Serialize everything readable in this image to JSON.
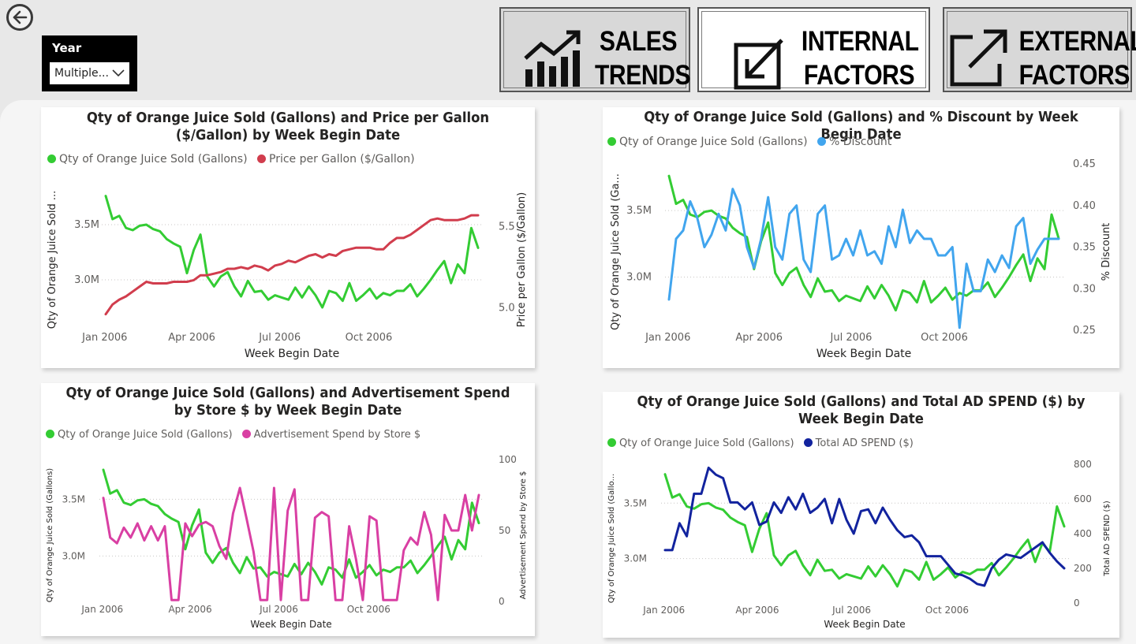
{
  "nav": {
    "back_icon": "arrow-left-circle-icon",
    "buttons": [
      {
        "line1": "SALES",
        "line2": "TRENDS",
        "icon": "chart-trending-up-icon",
        "active": false
      },
      {
        "line1": "INTERNAL",
        "line2": "FACTORS",
        "icon": "arrow-down-left-icon",
        "active": true
      },
      {
        "line1": "EXTERNAL",
        "line2": "FACTORS",
        "icon": "arrow-up-right-icon",
        "active": false
      }
    ]
  },
  "slicer": {
    "title": "Year",
    "value": "Multiple..."
  },
  "colors": {
    "green": "#33cc33",
    "red": "#d13d4d",
    "blue": "#41a5ee",
    "pink": "#d93fa3",
    "navy": "#12239e"
  },
  "chart_data": [
    {
      "type": "line",
      "title": "Qty of Orange Juice Sold (Gallons) and Price per Gallon ($/Gallon) by Week Begin Date",
      "xlabel": "Week Begin Date",
      "x_ticks": [
        "Jan 2006",
        "Apr 2006",
        "Jul 2006",
        "Oct 2006"
      ],
      "ylabel": "Qty of Orange Juice Sold ...",
      "y_ticks": [
        "3.0M",
        "3.5M"
      ],
      "y2label": "Price per Gallon ($/Gallon)",
      "y2_ticks": [
        "5.0",
        "5.5"
      ],
      "ylim": [
        2.6,
        3.85
      ],
      "y2lim": [
        4.9,
        5.75
      ],
      "x_start": "2006-01-02",
      "x_step_days": 7,
      "series": [
        {
          "name": "Qty of Orange Juice Sold (Gallons)",
          "axis": "y",
          "color": "#33cc33",
          "values": [
            3.76,
            3.55,
            3.58,
            3.47,
            3.45,
            3.49,
            3.5,
            3.46,
            3.44,
            3.37,
            3.33,
            3.3,
            3.06,
            3.27,
            3.41,
            3.03,
            2.94,
            3.03,
            3.07,
            2.94,
            2.85,
            2.99,
            2.89,
            2.9,
            2.82,
            2.86,
            2.84,
            2.82,
            2.93,
            2.84,
            2.94,
            2.86,
            2.75,
            2.9,
            2.88,
            2.81,
            2.97,
            2.81,
            2.86,
            2.92,
            2.83,
            2.88,
            2.86,
            2.9,
            2.9,
            2.96,
            2.85,
            2.92,
            3.0,
            3.09,
            3.17,
            2.97,
            3.14,
            3.06,
            3.47,
            3.29
          ]
        },
        {
          "name": "Price per Gallon ($/Gallon)",
          "axis": "y2",
          "color": "#d13d4d",
          "values": [
            4.96,
            5.02,
            5.05,
            5.07,
            5.1,
            5.13,
            5.16,
            5.15,
            5.15,
            5.15,
            5.16,
            5.16,
            5.16,
            5.17,
            5.2,
            5.2,
            5.21,
            5.22,
            5.24,
            5.24,
            5.25,
            5.24,
            5.26,
            5.25,
            5.23,
            5.26,
            5.27,
            5.29,
            5.28,
            5.3,
            5.32,
            5.33,
            5.31,
            5.33,
            5.32,
            5.35,
            5.36,
            5.37,
            5.37,
            5.37,
            5.36,
            5.36,
            5.4,
            5.43,
            5.43,
            5.45,
            5.48,
            5.51,
            5.54,
            5.55,
            5.54,
            5.54,
            5.54,
            5.55,
            5.57,
            5.57
          ]
        }
      ]
    },
    {
      "type": "line",
      "title": "Qty of Orange Juice Sold (Gallons) and % Discount by Week Begin Date",
      "xlabel": "Week Begin Date",
      "x_ticks": [
        "Jan 2006",
        "Apr 2006",
        "Jul 2006",
        "Oct 2006"
      ],
      "ylabel": "Qty of Orange Juice Sold (Ga...",
      "y_ticks": [
        "3.0M",
        "3.5M"
      ],
      "y2label": "% Discount",
      "y2_ticks": [
        "0.25",
        "0.30",
        "0.35",
        "0.40",
        "0.45"
      ],
      "ylim": [
        2.6,
        3.85
      ],
      "y2lim": [
        0.25,
        0.45
      ],
      "x_start": "2006-01-02",
      "x_step_days": 7,
      "series": [
        {
          "name": "Qty of Orange Juice Sold (Gallons)",
          "axis": "y",
          "color": "#33cc33",
          "values": [
            3.76,
            3.55,
            3.58,
            3.47,
            3.45,
            3.49,
            3.5,
            3.46,
            3.44,
            3.37,
            3.33,
            3.3,
            3.06,
            3.27,
            3.41,
            3.03,
            2.94,
            3.03,
            3.07,
            2.94,
            2.85,
            2.99,
            2.89,
            2.9,
            2.82,
            2.86,
            2.84,
            2.82,
            2.93,
            2.84,
            2.94,
            2.86,
            2.75,
            2.9,
            2.88,
            2.81,
            2.97,
            2.81,
            2.86,
            2.92,
            2.83,
            2.88,
            2.86,
            2.9,
            2.9,
            2.96,
            2.85,
            2.92,
            3.0,
            3.09,
            3.17,
            2.97,
            3.14,
            3.06,
            3.47,
            3.29
          ]
        },
        {
          "name": "% Discount",
          "axis": "y2",
          "color": "#41a5ee",
          "values": [
            0.287,
            0.36,
            0.37,
            0.405,
            0.385,
            0.35,
            0.365,
            0.39,
            0.37,
            0.42,
            0.4,
            0.35,
            0.325,
            0.36,
            0.41,
            0.35,
            0.335,
            0.39,
            0.4,
            0.335,
            0.32,
            0.39,
            0.4,
            0.335,
            0.34,
            0.36,
            0.34,
            0.37,
            0.34,
            0.345,
            0.33,
            0.375,
            0.35,
            0.395,
            0.355,
            0.37,
            0.36,
            0.36,
            0.34,
            0.34,
            0.35,
            0.253,
            0.33,
            0.297,
            0.297,
            0.335,
            0.32,
            0.34,
            0.325,
            0.375,
            0.385,
            0.33,
            0.347,
            0.36,
            0.36,
            0.36
          ]
        }
      ]
    },
    {
      "type": "line",
      "title": "Qty of Orange Juice Sold (Gallons) and Advertisement Spend by Store $ by Week Begin Date",
      "xlabel": "Week Begin Date",
      "x_ticks": [
        "Jan 2006",
        "Apr 2006",
        "Jul 2006",
        "Oct 2006"
      ],
      "ylabel": "Qty of Orange Juice Sold (Gallons)",
      "y_ticks": [
        "3.0M",
        "3.5M"
      ],
      "y2label": "Advertisement Spend by Store $",
      "y2_ticks": [
        "0",
        "50",
        "100"
      ],
      "ylim": [
        2.6,
        3.85
      ],
      "y2lim": [
        0,
        100
      ],
      "x_start": "2006-01-02",
      "x_step_days": 7,
      "series": [
        {
          "name": "Qty of Orange Juice Sold (Gallons)",
          "axis": "y",
          "color": "#33cc33",
          "values": [
            3.76,
            3.55,
            3.58,
            3.47,
            3.45,
            3.49,
            3.5,
            3.46,
            3.44,
            3.37,
            3.33,
            3.3,
            3.06,
            3.27,
            3.41,
            3.03,
            2.94,
            3.03,
            3.07,
            2.94,
            2.85,
            2.99,
            2.89,
            2.9,
            2.82,
            2.86,
            2.84,
            2.82,
            2.93,
            2.84,
            2.94,
            2.86,
            2.75,
            2.9,
            2.88,
            2.81,
            2.97,
            2.81,
            2.86,
            2.92,
            2.83,
            2.88,
            2.86,
            2.9,
            2.9,
            2.96,
            2.85,
            2.92,
            3.0,
            3.09,
            3.17,
            2.97,
            3.14,
            3.06,
            3.47,
            3.29
          ]
        },
        {
          "name": "Advertisement Spend by Store $",
          "axis": "y2",
          "color": "#d93fa3",
          "values": [
            73,
            45,
            41,
            52,
            45,
            55,
            43,
            53,
            43,
            53,
            1,
            1,
            55,
            46,
            54,
            56,
            53,
            39,
            30,
            62,
            80,
            58,
            35,
            1,
            1,
            80,
            1,
            64,
            79,
            1,
            1,
            59,
            63,
            60,
            1,
            1,
            53,
            30,
            1,
            60,
            57,
            1,
            1,
            1,
            36,
            45,
            40,
            63,
            47,
            1,
            61,
            50,
            50,
            75,
            50,
            75
          ]
        }
      ]
    },
    {
      "type": "line",
      "title": "Qty of Orange Juice Sold (Gallons) and Total AD SPEND ($) by Week Begin Date",
      "xlabel": "Week Begin Date",
      "x_ticks": [
        "Jan 2006",
        "Apr 2006",
        "Jul 2006",
        "Oct 2006"
      ],
      "ylabel": "Qty of Orange Juice Sold (Gallo...",
      "y_ticks": [
        "3.0M",
        "3.5M"
      ],
      "y2label": "Total AD SPEND ($)",
      "y2_ticks": [
        "0",
        "200",
        "400",
        "600",
        "800"
      ],
      "ylim": [
        2.6,
        3.85
      ],
      "y2lim": [
        0,
        800
      ],
      "x_start": "2006-01-02",
      "x_step_days": 7,
      "series": [
        {
          "name": "Qty of Orange Juice Sold (Gallons)",
          "axis": "y",
          "color": "#33cc33",
          "values": [
            3.76,
            3.55,
            3.58,
            3.47,
            3.45,
            3.49,
            3.5,
            3.46,
            3.44,
            3.37,
            3.33,
            3.3,
            3.06,
            3.27,
            3.41,
            3.03,
            2.94,
            3.03,
            3.07,
            2.94,
            2.85,
            2.99,
            2.89,
            2.9,
            2.82,
            2.86,
            2.84,
            2.82,
            2.93,
            2.84,
            2.94,
            2.86,
            2.75,
            2.9,
            2.88,
            2.81,
            2.97,
            2.81,
            2.86,
            2.92,
            2.83,
            2.88,
            2.86,
            2.9,
            2.9,
            2.96,
            2.85,
            2.92,
            3.0,
            3.09,
            3.17,
            2.97,
            3.14,
            3.06,
            3.47,
            3.29
          ]
        },
        {
          "name": "Total AD SPEND ($)",
          "axis": "y2",
          "color": "#12239e",
          "values": [
            305,
            305,
            460,
            385,
            630,
            630,
            780,
            740,
            720,
            580,
            580,
            540,
            580,
            450,
            470,
            580,
            520,
            610,
            540,
            630,
            520,
            550,
            600,
            460,
            600,
            480,
            400,
            530,
            540,
            460,
            550,
            480,
            420,
            380,
            390,
            350,
            270,
            270,
            270,
            220,
            170,
            160,
            140,
            110,
            100,
            200,
            250,
            280,
            270,
            260,
            290,
            320,
            350,
            290,
            240,
            200
          ]
        }
      ]
    }
  ]
}
